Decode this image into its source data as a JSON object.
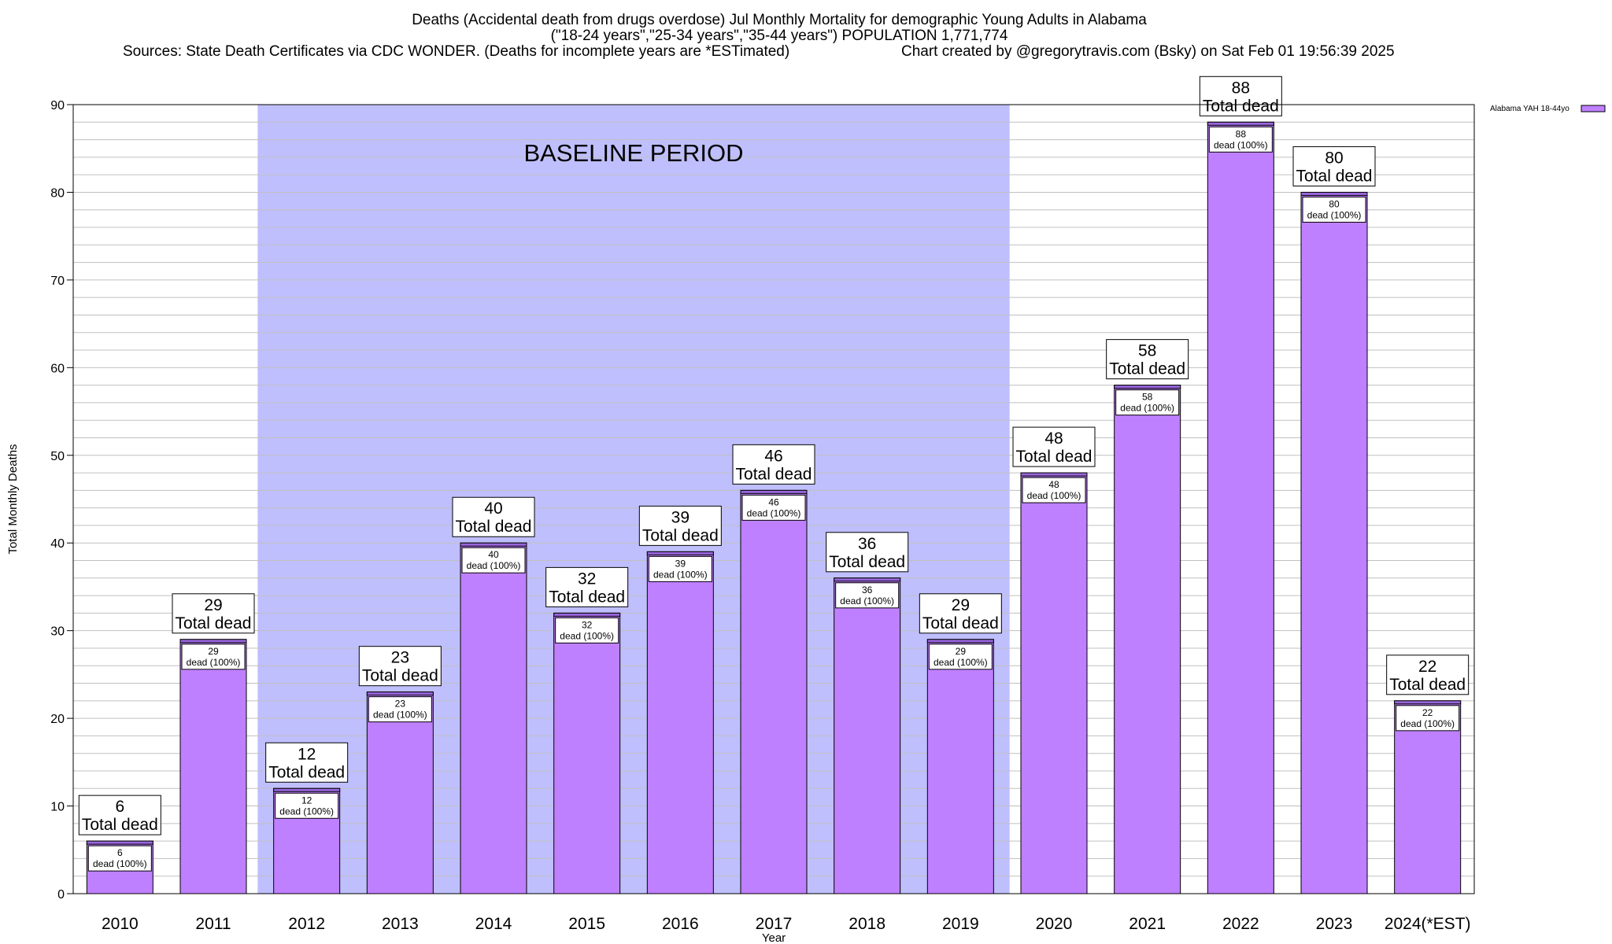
{
  "chart_data": {
    "type": "bar",
    "title_lines": [
      "Deaths (Accidental death from drugs overdose) Jul Monthly Mortality for demographic Young Adults in Alabama",
      "(\"18-24 years\",\"25-34 years\",\"35-44 years\") POPULATION 1,771,774"
    ],
    "sources_text": "Sources: State Death Certificates via CDC WONDER. (Deaths for incomplete years are *ESTimated)",
    "credit_text": "Chart created by @gregorytravis.com (Bsky) on Sat Feb 01 19:56:39 2025",
    "xlabel": "Year",
    "ylabel": "Total Monthly Deaths",
    "ylim": [
      0,
      90
    ],
    "y_ticks": [
      0,
      10,
      20,
      30,
      40,
      50,
      60,
      70,
      80,
      90
    ],
    "y_minor_step": 2,
    "grid": true,
    "legend": {
      "position": "top-right",
      "label": "Alabama YAH 18-44yo"
    },
    "categories": [
      "2010",
      "2011",
      "2012",
      "2013",
      "2014",
      "2015",
      "2016",
      "2017",
      "2018",
      "2019",
      "2020",
      "2021",
      "2022",
      "2023",
      "2024(*EST)"
    ],
    "series": [
      {
        "name": "Alabama YAH 18-44yo",
        "values": [
          6,
          29,
          12,
          23,
          40,
          32,
          39,
          46,
          36,
          29,
          48,
          58,
          88,
          80,
          22
        ]
      }
    ],
    "total_label_suffix": "Total dead",
    "inner_label_suffix": "dead (100%)",
    "annotation": {
      "text": "BASELINE PERIOD",
      "from_category": "2012",
      "to_category": "2019"
    },
    "colors": {
      "bar_fill": "#bf80ff",
      "bar_top": "#9966dd",
      "baseline_fill": "#bfbffe",
      "grid": "#c0c0c0",
      "axis": "#000000"
    }
  }
}
